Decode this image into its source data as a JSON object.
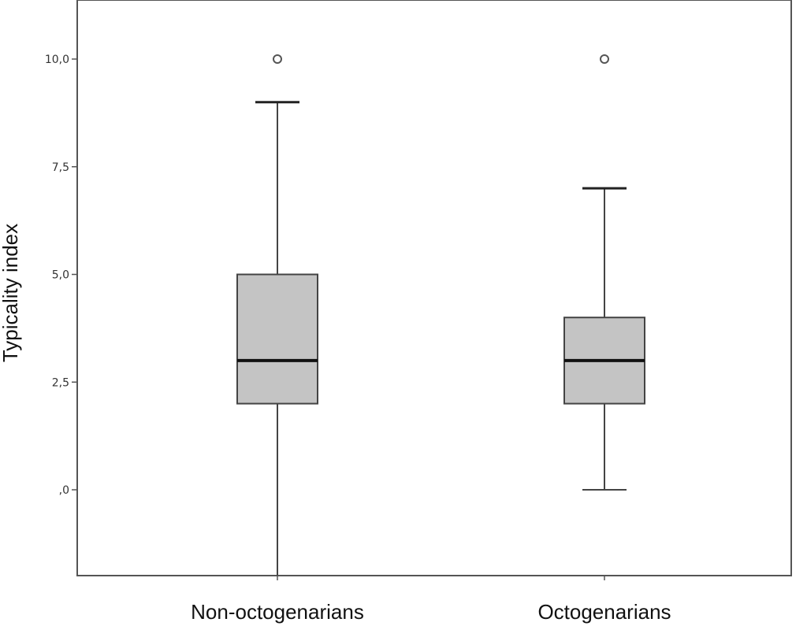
{
  "chart_data": {
    "type": "boxplot",
    "ylabel": "Typicality index",
    "ylim": [
      -2.0,
      11.3
    ],
    "y_ticks": [
      0.0,
      2.5,
      5.0,
      7.5,
      10.0
    ],
    "y_tick_labels": [
      ",0",
      "2,5",
      "5,0",
      "7,5",
      "10,0"
    ],
    "grid": false,
    "categories": [
      "Non-octogenarians",
      "Octogenarians"
    ],
    "boxes": [
      {
        "category": "Non-octogenarians",
        "whisker_low": -2.0,
        "q1": 2.0,
        "median": 3.0,
        "q3": 5.0,
        "whisker_high": 9.0,
        "outliers": [
          10.0
        ]
      },
      {
        "category": "Octogenarians",
        "whisker_low": 0.0,
        "q1": 2.0,
        "median": 3.0,
        "q3": 4.0,
        "whisker_high": 7.0,
        "outliers": [
          10.0
        ]
      }
    ],
    "colors": {
      "box_fill": "#c4c4c4",
      "line": "#444444",
      "median": "#111111",
      "frame": "#555555"
    }
  }
}
